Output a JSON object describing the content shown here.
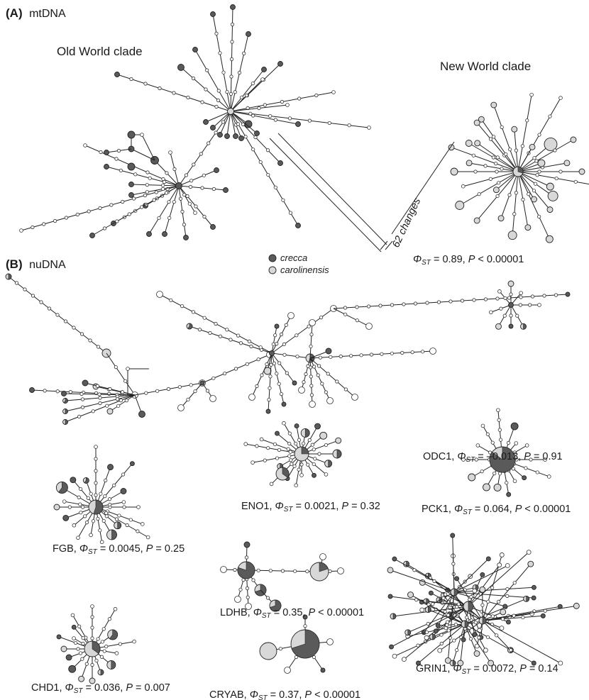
{
  "colors": {
    "crecca": "#5a5a5a",
    "carolinensis": "#d8d8d8"
  },
  "panel_a": {
    "letter": "(A)",
    "title": "mtDNA",
    "old_world_label": "Old World clade",
    "new_world_label": "New World clade",
    "changes_label": "62 changes",
    "stat": {
      "phi": "Φ",
      "sub": "ST",
      "value": " = 0.89, ",
      "p": "P",
      "pval": " < 0.00001"
    }
  },
  "legend": {
    "crecca": "crecca",
    "carolinensis": "carolinensis"
  },
  "panel_b": {
    "letter": "(B)",
    "title": "nuDNA",
    "loci": [
      {
        "id": "odc1",
        "name": "ODC1, ",
        "phi_value": " = –0.013, ",
        "p_value": " = 0.91"
      },
      {
        "id": "eno1",
        "name": "ENO1, ",
        "phi_value": " = 0.0021, ",
        "p_value": " = 0.32"
      },
      {
        "id": "pck1",
        "name": "PCK1, ",
        "phi_value": " = 0.064, ",
        "p_value": " < 0.00001"
      },
      {
        "id": "fgb",
        "name": "FGB, ",
        "phi_value": " = 0.0045, ",
        "p_value": " = 0.25"
      },
      {
        "id": "ldhb",
        "name": "LDHB, ",
        "phi_value": " = 0.35, ",
        "p_value": " < 0.00001"
      },
      {
        "id": "grin1",
        "name": "GRIN1, ",
        "phi_value": " = 0.0072, ",
        "p_value": " = 0.14"
      },
      {
        "id": "chd1",
        "name": "CHD1, ",
        "phi_value": " = 0.036, ",
        "p_value": " = 0.007"
      },
      {
        "id": "cryab",
        "name": "CRYAB, ",
        "phi_value": " = 0.37, ",
        "p_value": " < 0.00001"
      }
    ],
    "phi": "Φ",
    "sub": "ST",
    "p": "P"
  }
}
